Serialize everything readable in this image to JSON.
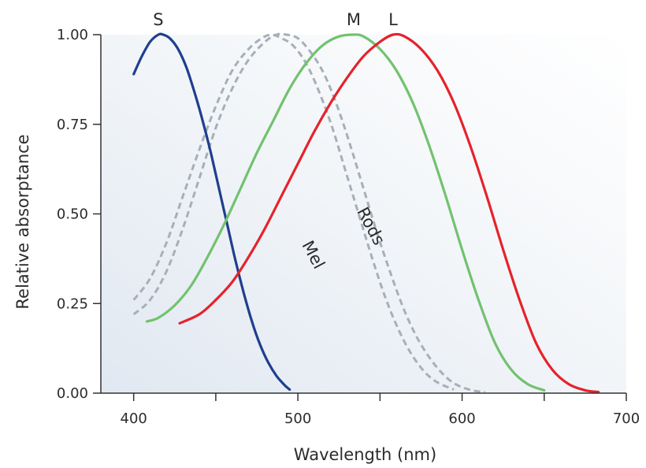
{
  "chart_data": {
    "type": "line",
    "title": "",
    "xlabel": "Wavelength (nm)",
    "ylabel": "Relative absorptance",
    "xlim": [
      380,
      700
    ],
    "ylim": [
      0,
      1
    ],
    "xticks": [
      400,
      500,
      600,
      700
    ],
    "xtick_labels": [
      "400",
      "500",
      "600",
      "700"
    ],
    "yticks": [
      0,
      0.25,
      0.5,
      0.75,
      1
    ],
    "ytick_labels": [
      "0.00",
      "0.25",
      "0.50",
      "0.75",
      "1.00"
    ],
    "grid": false,
    "background": "light blue-gray gradient",
    "series": [
      {
        "key": "s",
        "name": "S",
        "color": "#1f3f8f",
        "style": "solid",
        "label_style": "above-peak",
        "points": [
          [
            400,
            0.89
          ],
          [
            405,
            0.94
          ],
          [
            410,
            0.98
          ],
          [
            415,
            1.0
          ],
          [
            418,
            1.0
          ],
          [
            422,
            0.99
          ],
          [
            427,
            0.96
          ],
          [
            432,
            0.91
          ],
          [
            437,
            0.84
          ],
          [
            442,
            0.76
          ],
          [
            447,
            0.67
          ],
          [
            452,
            0.57
          ],
          [
            457,
            0.47
          ],
          [
            462,
            0.37
          ],
          [
            467,
            0.28
          ],
          [
            472,
            0.2
          ],
          [
            477,
            0.135
          ],
          [
            482,
            0.085
          ],
          [
            487,
            0.048
          ],
          [
            492,
            0.022
          ],
          [
            495,
            0.01
          ]
        ]
      },
      {
        "key": "m",
        "name": "M",
        "color": "#72c26f",
        "style": "solid",
        "label_style": "above-peak",
        "points": [
          [
            408,
            0.2
          ],
          [
            415,
            0.21
          ],
          [
            425,
            0.245
          ],
          [
            435,
            0.3
          ],
          [
            445,
            0.38
          ],
          [
            455,
            0.47
          ],
          [
            465,
            0.57
          ],
          [
            475,
            0.67
          ],
          [
            485,
            0.76
          ],
          [
            495,
            0.85
          ],
          [
            505,
            0.92
          ],
          [
            515,
            0.97
          ],
          [
            525,
            0.995
          ],
          [
            534,
            1.0
          ],
          [
            540,
            0.995
          ],
          [
            550,
            0.96
          ],
          [
            560,
            0.9
          ],
          [
            570,
            0.81
          ],
          [
            580,
            0.69
          ],
          [
            590,
            0.55
          ],
          [
            600,
            0.4
          ],
          [
            610,
            0.26
          ],
          [
            620,
            0.14
          ],
          [
            630,
            0.065
          ],
          [
            640,
            0.025
          ],
          [
            650,
            0.008
          ]
        ]
      },
      {
        "key": "l",
        "name": "L",
        "color": "#e5232b",
        "style": "solid",
        "label_style": "above-peak",
        "points": [
          [
            428,
            0.195
          ],
          [
            440,
            0.22
          ],
          [
            450,
            0.26
          ],
          [
            460,
            0.31
          ],
          [
            470,
            0.38
          ],
          [
            480,
            0.46
          ],
          [
            490,
            0.55
          ],
          [
            500,
            0.64
          ],
          [
            510,
            0.73
          ],
          [
            520,
            0.81
          ],
          [
            530,
            0.88
          ],
          [
            540,
            0.94
          ],
          [
            550,
            0.98
          ],
          [
            558,
            1.0
          ],
          [
            565,
            0.995
          ],
          [
            575,
            0.96
          ],
          [
            585,
            0.9
          ],
          [
            595,
            0.81
          ],
          [
            605,
            0.69
          ],
          [
            615,
            0.55
          ],
          [
            625,
            0.4
          ],
          [
            635,
            0.26
          ],
          [
            645,
            0.14
          ],
          [
            655,
            0.065
          ],
          [
            665,
            0.025
          ],
          [
            675,
            0.008
          ],
          [
            683,
            0.003
          ]
        ]
      },
      {
        "key": "mel",
        "name": "Mel",
        "color": "#a7afb8",
        "style": "dashed",
        "label_style": "rotated",
        "label_at": [
          509,
          0.385
        ],
        "label_angle": 62,
        "points": [
          [
            400,
            0.26
          ],
          [
            410,
            0.32
          ],
          [
            420,
            0.42
          ],
          [
            430,
            0.55
          ],
          [
            440,
            0.68
          ],
          [
            450,
            0.8
          ],
          [
            460,
            0.9
          ],
          [
            470,
            0.96
          ],
          [
            478,
            0.99
          ],
          [
            484,
            1.0
          ],
          [
            490,
            0.99
          ],
          [
            497,
            0.97
          ],
          [
            505,
            0.92
          ],
          [
            513,
            0.84
          ],
          [
            521,
            0.74
          ],
          [
            529,
            0.62
          ],
          [
            537,
            0.5
          ],
          [
            545,
            0.38
          ],
          [
            553,
            0.27
          ],
          [
            561,
            0.18
          ],
          [
            569,
            0.11
          ],
          [
            577,
            0.06
          ],
          [
            585,
            0.03
          ],
          [
            595,
            0.01
          ]
        ]
      },
      {
        "key": "rods",
        "name": "Rods",
        "color": "#a7afb8",
        "style": "dashed",
        "label_style": "rotated",
        "label_at": [
          544,
          0.465
        ],
        "label_angle": 62,
        "points": [
          [
            400,
            0.22
          ],
          [
            410,
            0.26
          ],
          [
            420,
            0.34
          ],
          [
            430,
            0.46
          ],
          [
            440,
            0.6
          ],
          [
            450,
            0.74
          ],
          [
            460,
            0.85
          ],
          [
            470,
            0.93
          ],
          [
            480,
            0.98
          ],
          [
            487,
            1.0
          ],
          [
            493,
            1.0
          ],
          [
            500,
            0.99
          ],
          [
            508,
            0.95
          ],
          [
            516,
            0.89
          ],
          [
            524,
            0.8
          ],
          [
            532,
            0.69
          ],
          [
            540,
            0.57
          ],
          [
            548,
            0.45
          ],
          [
            556,
            0.34
          ],
          [
            564,
            0.24
          ],
          [
            572,
            0.16
          ],
          [
            580,
            0.1
          ],
          [
            588,
            0.055
          ],
          [
            596,
            0.025
          ],
          [
            606,
            0.008
          ],
          [
            614,
            0.003
          ]
        ]
      }
    ]
  }
}
